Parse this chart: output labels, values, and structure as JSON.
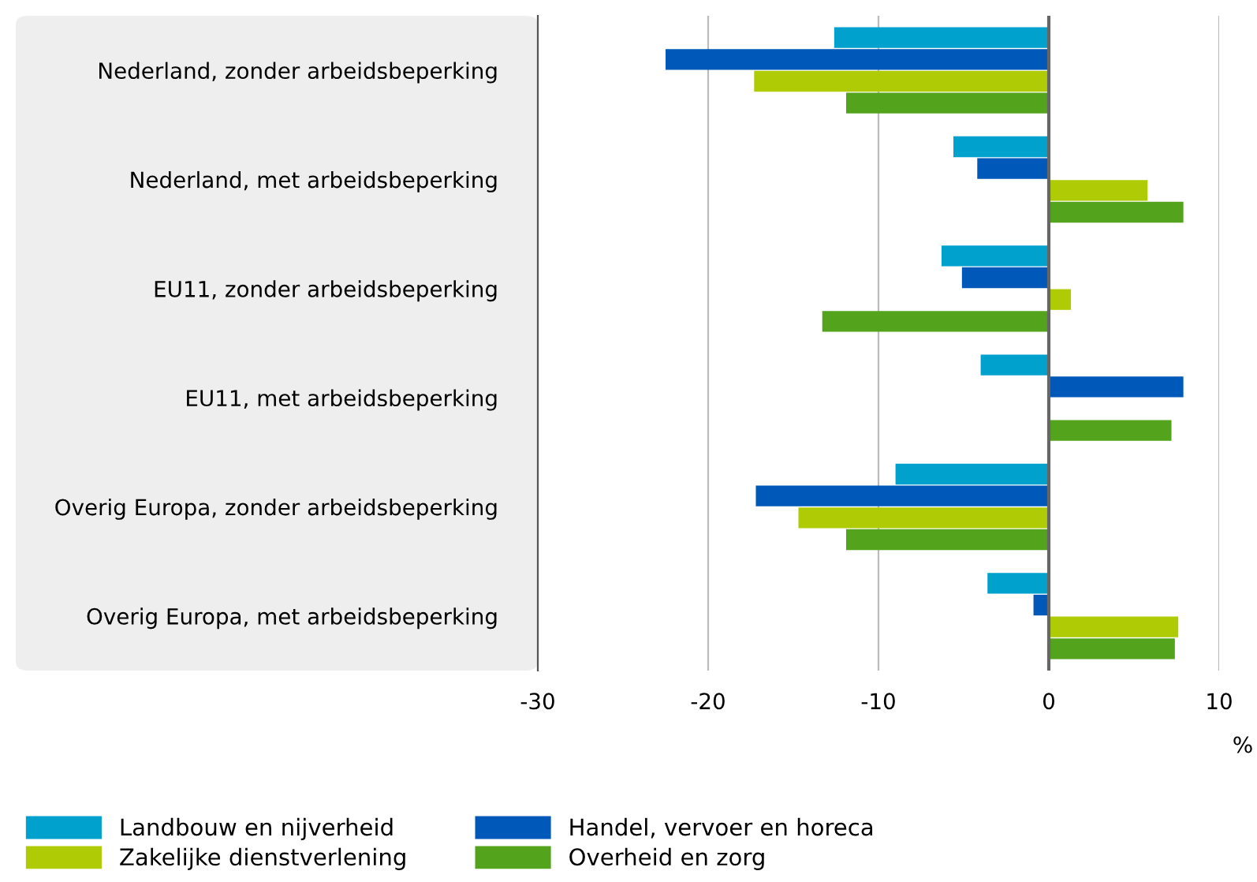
{
  "chart_data": {
    "type": "bar",
    "orientation": "horizontal",
    "xlabel": "%",
    "categories": [
      "Nederland, zonder arbeidsbeperking",
      "Nederland, met arbeidsbeperking",
      "EU11, zonder arbeidsbeperking",
      "EU11, met arbeidsbeperking",
      "Overig Europa, zonder arbeidsbeperking",
      "Overig Europa, met arbeidsbeperking"
    ],
    "series": [
      {
        "name": "Landbouw en nijverheid",
        "color": "#00a1cd",
        "values": [
          -12.6,
          -5.6,
          -6.3,
          -4.0,
          -9.0,
          -3.6
        ]
      },
      {
        "name": "Handel, vervoer en horeca",
        "color": "#0058b8",
        "values": [
          -22.5,
          -4.2,
          -5.1,
          7.9,
          -17.2,
          -0.9
        ]
      },
      {
        "name": "Zakelijke dienstverlening",
        "color": "#afcb05",
        "values": [
          -17.3,
          5.8,
          1.3,
          null,
          -14.7,
          7.6
        ]
      },
      {
        "name": "Overheid en zorg",
        "color": "#53a31d",
        "values": [
          -11.9,
          7.9,
          -13.3,
          7.2,
          -11.9,
          7.4
        ]
      }
    ],
    "xlim": [
      -30,
      10
    ],
    "xticks": [
      -30,
      -20,
      -10,
      0,
      10
    ],
    "grid": "x",
    "ref_lines": [
      {
        "axis": "x",
        "value": 0,
        "color": "#666666"
      }
    ],
    "legend": "bottom"
  }
}
